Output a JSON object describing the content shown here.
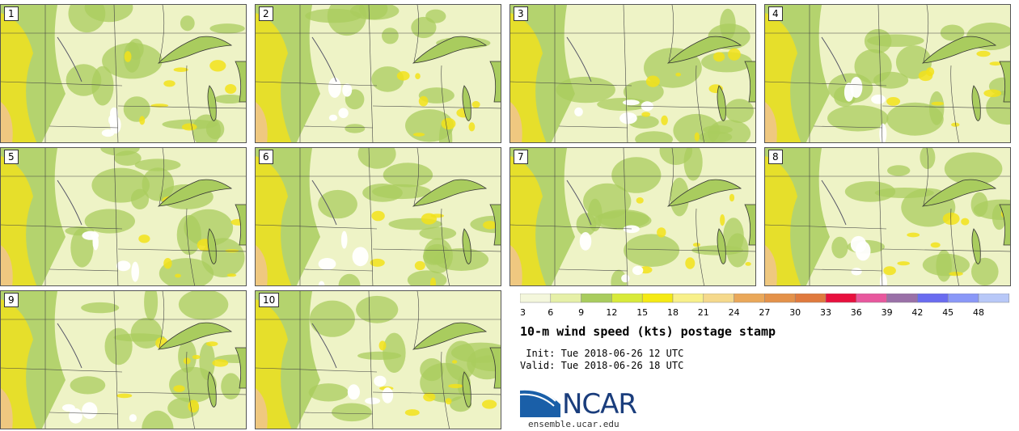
{
  "panels": [
    {
      "label": "1"
    },
    {
      "label": "2"
    },
    {
      "label": "3"
    },
    {
      "label": "4"
    },
    {
      "label": "5"
    },
    {
      "label": "6"
    },
    {
      "label": "7"
    },
    {
      "label": "8"
    },
    {
      "label": "9"
    },
    {
      "label": "10"
    }
  ],
  "colorbar": {
    "ticks": [
      "3",
      "6",
      "9",
      "12",
      "15",
      "18",
      "21",
      "24",
      "27",
      "30",
      "33",
      "36",
      "39",
      "42",
      "45",
      "48"
    ],
    "colors": [
      "#f4f7dc",
      "#e6f0a8",
      "#a9cc5e",
      "#d8ea3a",
      "#f5ea14",
      "#f8f08a",
      "#f5d98c",
      "#eaa85a",
      "#e4924a",
      "#e07a3e",
      "#e8103e",
      "#e8589e",
      "#9a70a8",
      "#6a6cf0",
      "#8a98f8",
      "#b8c8f8"
    ]
  },
  "legend": {
    "title": "10-m wind speed (kts) postage stamp",
    "init": " Init: Tue 2018-06-26 12 UTC",
    "valid": "Valid: Tue 2018-06-26 18 UTC"
  },
  "logo": {
    "name": "NCAR",
    "site": "ensemble.ucar.edu"
  },
  "colors": {
    "light": "#eef3c6",
    "green": "#a9cc5e",
    "yellow": "#f2e21a",
    "tan": "#f0c58a",
    "white": "#ffffff"
  }
}
